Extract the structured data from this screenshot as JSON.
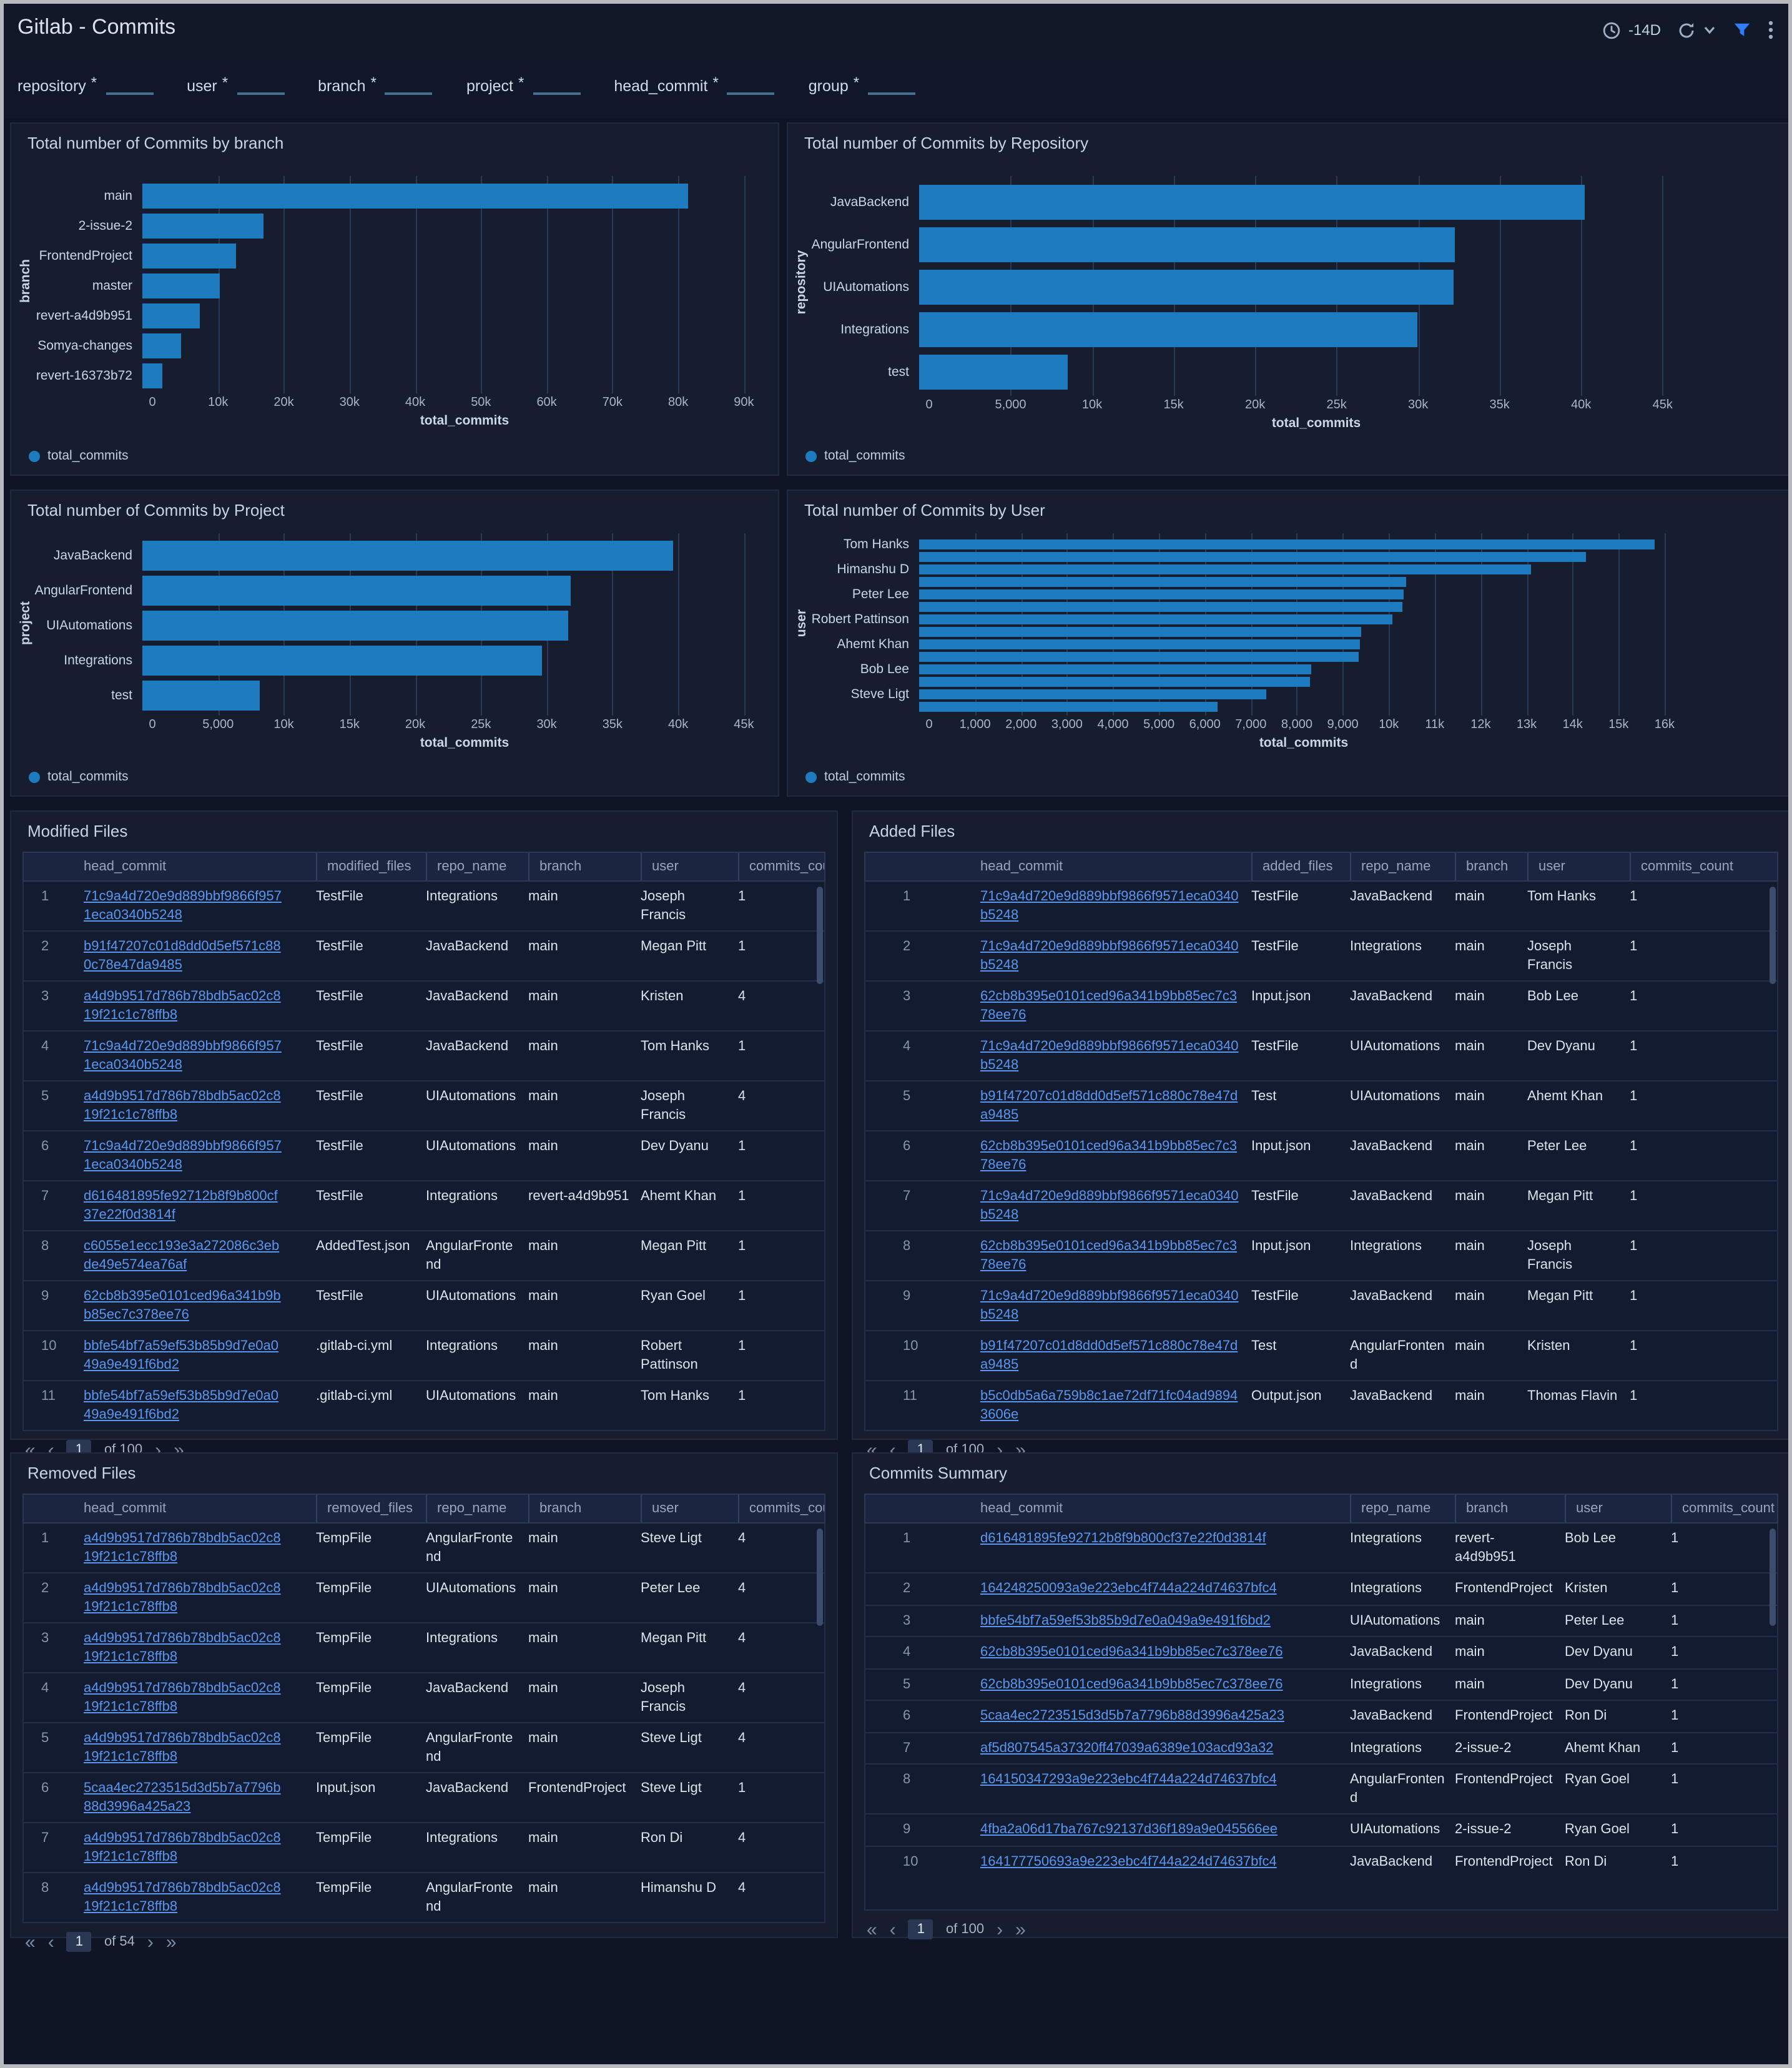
{
  "header": {
    "title": "Gitlab - Commits",
    "time_range": "-14D",
    "icons": [
      "clock-icon",
      "refresh-icon",
      "chevron-down-icon",
      "filter-icon",
      "kebab-menu-icon"
    ]
  },
  "filters": [
    {
      "label": "repository",
      "required": "*"
    },
    {
      "label": "user",
      "required": "*"
    },
    {
      "label": "branch",
      "required": "*"
    },
    {
      "label": "project",
      "required": "*"
    },
    {
      "label": "head_commit",
      "required": "*"
    },
    {
      "label": "group",
      "required": "*"
    }
  ],
  "colors": {
    "bar": "#1f7bc0",
    "link": "#5b96ee",
    "filter_icon_accent": "#2f7ef7"
  },
  "charts": [
    {
      "title": "Total number of Commits by branch",
      "type": "bar",
      "orientation": "horizontal",
      "ylabel": "branch",
      "xlabel": "total_commits",
      "legend": "total_commits",
      "xmax": 95000,
      "ticks": [
        {
          "v": 0,
          "label": "0"
        },
        {
          "v": 10000,
          "label": "10k"
        },
        {
          "v": 20000,
          "label": "20k"
        },
        {
          "v": 30000,
          "label": "30k"
        },
        {
          "v": 40000,
          "label": "40k"
        },
        {
          "v": 50000,
          "label": "50k"
        },
        {
          "v": 60000,
          "label": "60k"
        },
        {
          "v": 70000,
          "label": "70k"
        },
        {
          "v": 80000,
          "label": "80k"
        },
        {
          "v": 90000,
          "label": "90k"
        }
      ],
      "bars": [
        {
          "label": "main",
          "value": 83000
        },
        {
          "label": "2-issue-2",
          "value": 18500
        },
        {
          "label": "FrontendProject",
          "value": 14200
        },
        {
          "label": "master",
          "value": 11800
        },
        {
          "label": "revert-a4d9b951",
          "value": 8800
        },
        {
          "label": "Somya-changes",
          "value": 5900
        },
        {
          "label": "revert-16373b72",
          "value": 3000
        }
      ]
    },
    {
      "title": "Total number of Commits by Repository",
      "type": "bar",
      "orientation": "horizontal",
      "ylabel": "repository",
      "xlabel": "total_commits",
      "legend": "total_commits",
      "xmax": 47500,
      "ticks": [
        {
          "v": 0,
          "label": "0"
        },
        {
          "v": 5000,
          "label": "5,000"
        },
        {
          "v": 10000,
          "label": "10k"
        },
        {
          "v": 15000,
          "label": "15k"
        },
        {
          "v": 20000,
          "label": "20k"
        },
        {
          "v": 25000,
          "label": "25k"
        },
        {
          "v": 30000,
          "label": "30k"
        },
        {
          "v": 35000,
          "label": "35k"
        },
        {
          "v": 40000,
          "label": "40k"
        },
        {
          "v": 45000,
          "label": "45k"
        }
      ],
      "bars": [
        {
          "label": "JavaBackend",
          "value": 40800
        },
        {
          "label": "AngularFrontend",
          "value": 32900
        },
        {
          "label": "UIAutomations",
          "value": 32800
        },
        {
          "label": "Integrations",
          "value": 30600
        },
        {
          "label": "test",
          "value": 9100
        }
      ]
    },
    {
      "title": "Total number of Commits by Project",
      "type": "bar",
      "orientation": "horizontal",
      "ylabel": "project",
      "xlabel": "total_commits",
      "legend": "total_commits",
      "xmax": 47500,
      "ticks": [
        {
          "v": 0,
          "label": "0"
        },
        {
          "v": 5000,
          "label": "5,000"
        },
        {
          "v": 10000,
          "label": "10k"
        },
        {
          "v": 15000,
          "label": "15k"
        },
        {
          "v": 20000,
          "label": "20k"
        },
        {
          "v": 25000,
          "label": "25k"
        },
        {
          "v": 30000,
          "label": "30k"
        },
        {
          "v": 35000,
          "label": "35k"
        },
        {
          "v": 40000,
          "label": "40k"
        },
        {
          "v": 45000,
          "label": "45k"
        }
      ],
      "bars": [
        {
          "label": "JavaBackend",
          "value": 40400
        },
        {
          "label": "AngularFrontend",
          "value": 32600
        },
        {
          "label": "UIAutomations",
          "value": 32400
        },
        {
          "label": "Integrations",
          "value": 30400
        },
        {
          "label": "test",
          "value": 8900
        }
      ]
    },
    {
      "title": "Total number of Commits by User",
      "type": "bar",
      "orientation": "horizontal",
      "ylabel": "user",
      "xlabel": "total_commits",
      "legend": "total_commits",
      "xmax": 16300,
      "ticks": [
        {
          "v": 0,
          "label": "0"
        },
        {
          "v": 1000,
          "label": "1,000"
        },
        {
          "v": 2000,
          "label": "2,000"
        },
        {
          "v": 3000,
          "label": "3,000"
        },
        {
          "v": 4000,
          "label": "4,000"
        },
        {
          "v": 5000,
          "label": "5,000"
        },
        {
          "v": 6000,
          "label": "6,000"
        },
        {
          "v": 7000,
          "label": "7,000"
        },
        {
          "v": 8000,
          "label": "8,000"
        },
        {
          "v": 9000,
          "label": "9,000"
        },
        {
          "v": 10000,
          "label": "10k"
        },
        {
          "v": 11000,
          "label": "11k"
        },
        {
          "v": 12000,
          "label": "12k"
        },
        {
          "v": 13000,
          "label": "13k"
        },
        {
          "v": 14000,
          "label": "14k"
        },
        {
          "v": 15000,
          "label": "15k"
        },
        {
          "v": 16000,
          "label": "16k"
        }
      ],
      "bars": [
        {
          "label": "Tom Hanks",
          "value": 16000
        },
        {
          "label": "",
          "value": 14500
        },
        {
          "label": "Himanshu D",
          "value": 13300
        },
        {
          "label": "",
          "value": 10600
        },
        {
          "label": "Peter Lee",
          "value": 10550
        },
        {
          "label": "",
          "value": 10500
        },
        {
          "label": "Robert Pattinson",
          "value": 10300
        },
        {
          "label": "",
          "value": 9620
        },
        {
          "label": "Ahemt Khan",
          "value": 9600
        },
        {
          "label": "",
          "value": 9550
        },
        {
          "label": "Bob Lee",
          "value": 8520
        },
        {
          "label": "",
          "value": 8500
        },
        {
          "label": "Steve Ligt",
          "value": 7550
        },
        {
          "label": "",
          "value": 6500
        }
      ]
    }
  ],
  "tables": [
    {
      "title": "Modified Files",
      "columns": [
        "head_commit",
        "modified_files",
        "repo_name",
        "branch",
        "user",
        "commits_count"
      ],
      "rows": [
        [
          "71c9a4d720e9d889bbf9866f9571eca0340b5248",
          "TestFile",
          "Integrations",
          "main",
          "Joseph Francis",
          "1"
        ],
        [
          "b91f47207c01d8dd0d5ef571c880c78e47da9485",
          "TestFile",
          "JavaBackend",
          "main",
          "Megan Pitt",
          "1"
        ],
        [
          "a4d9b9517d786b78bdb5ac02c819f21c1c78ffb8",
          "TestFile",
          "JavaBackend",
          "main",
          "Kristen",
          "4"
        ],
        [
          "71c9a4d720e9d889bbf9866f9571eca0340b5248",
          "TestFile",
          "JavaBackend",
          "main",
          "Tom Hanks",
          "1"
        ],
        [
          "a4d9b9517d786b78bdb5ac02c819f21c1c78ffb8",
          "TestFile",
          "UIAutomations",
          "main",
          "Joseph Francis",
          "4"
        ],
        [
          "71c9a4d720e9d889bbf9866f9571eca0340b5248",
          "TestFile",
          "UIAutomations",
          "main",
          "Dev Dyanu",
          "1"
        ],
        [
          "d616481895fe92712b8f9b800cf37e22f0d3814f",
          "TestFile",
          "Integrations",
          "revert-a4d9b951",
          "Ahemt Khan",
          "1"
        ],
        [
          "c6055e1ecc193e3a272086c3ebde49e574ea76af",
          "AddedTest.json",
          "AngularFrontend",
          "main",
          "Megan Pitt",
          "1"
        ],
        [
          "62cb8b395e0101ced96a341b9bb85ec7c378ee76",
          "TestFile",
          "UIAutomations",
          "main",
          "Ryan Goel",
          "1"
        ],
        [
          "bbfe54bf7a59ef53b85b9d7e0a049a9e491f6bd2",
          ".gitlab-ci.yml",
          "Integrations",
          "main",
          "Robert Pattinson",
          "1"
        ],
        [
          "bbfe54bf7a59ef53b85b9d7e0a049a9e491f6bd2",
          ".gitlab-ci.yml",
          "UIAutomations",
          "main",
          "Tom Hanks",
          "1"
        ]
      ],
      "pagination": {
        "page": "1",
        "of_label": "of",
        "total": "100"
      }
    },
    {
      "title": "Added Files",
      "columns": [
        "head_commit",
        "added_files",
        "repo_name",
        "branch",
        "user",
        "commits_count"
      ],
      "rows": [
        [
          "71c9a4d720e9d889bbf9866f9571eca0340b5248",
          "TestFile",
          "JavaBackend",
          "main",
          "Tom Hanks",
          "1"
        ],
        [
          "71c9a4d720e9d889bbf9866f9571eca0340b5248",
          "TestFile",
          "Integrations",
          "main",
          "Joseph Francis",
          "1"
        ],
        [
          "62cb8b395e0101ced96a341b9bb85ec7c378ee76",
          "Input.json",
          "JavaBackend",
          "main",
          "Bob Lee",
          "1"
        ],
        [
          "71c9a4d720e9d889bbf9866f9571eca0340b5248",
          "TestFile",
          "UIAutomations",
          "main",
          "Dev Dyanu",
          "1"
        ],
        [
          "b91f47207c01d8dd0d5ef571c880c78e47da9485",
          "Test",
          "UIAutomations",
          "main",
          "Ahemt Khan",
          "1"
        ],
        [
          "62cb8b395e0101ced96a341b9bb85ec7c378ee76",
          "Input.json",
          "JavaBackend",
          "main",
          "Peter Lee",
          "1"
        ],
        [
          "71c9a4d720e9d889bbf9866f9571eca0340b5248",
          "TestFile",
          "JavaBackend",
          "main",
          "Megan Pitt",
          "1"
        ],
        [
          "62cb8b395e0101ced96a341b9bb85ec7c378ee76",
          "Input.json",
          "Integrations",
          "main",
          "Joseph Francis",
          "1"
        ],
        [
          "71c9a4d720e9d889bbf9866f9571eca0340b5248",
          "TestFile",
          "JavaBackend",
          "main",
          "Megan Pitt",
          "1"
        ],
        [
          "b91f47207c01d8dd0d5ef571c880c78e47da9485",
          "Test",
          "AngularFrontend",
          "main",
          "Kristen",
          "1"
        ],
        [
          "b5c0db5a6a759b8c1ae72df71fc04ad98943606e",
          "Output.json",
          "JavaBackend",
          "main",
          "Thomas Flavin",
          "1"
        ]
      ],
      "pagination": {
        "page": "1",
        "of_label": "of",
        "total": "100"
      }
    },
    {
      "title": "Removed Files",
      "columns": [
        "head_commit",
        "removed_files",
        "repo_name",
        "branch",
        "user",
        "commits_count"
      ],
      "rows": [
        [
          "a4d9b9517d786b78bdb5ac02c819f21c1c78ffb8",
          "TempFile",
          "AngularFrontend",
          "main",
          "Steve Ligt",
          "4"
        ],
        [
          "a4d9b9517d786b78bdb5ac02c819f21c1c78ffb8",
          "TempFile",
          "UIAutomations",
          "main",
          "Peter Lee",
          "4"
        ],
        [
          "a4d9b9517d786b78bdb5ac02c819f21c1c78ffb8",
          "TempFile",
          "Integrations",
          "main",
          "Megan Pitt",
          "4"
        ],
        [
          "a4d9b9517d786b78bdb5ac02c819f21c1c78ffb8",
          "TempFile",
          "JavaBackend",
          "main",
          "Joseph Francis",
          "4"
        ],
        [
          "a4d9b9517d786b78bdb5ac02c819f21c1c78ffb8",
          "TempFile",
          "AngularFrontend",
          "main",
          "Steve Ligt",
          "4"
        ],
        [
          "5caa4ec2723515d3d5b7a7796b88d3996a425a23",
          "Input.json",
          "JavaBackend",
          "FrontendProject",
          "Steve Ligt",
          "1"
        ],
        [
          "a4d9b9517d786b78bdb5ac02c819f21c1c78ffb8",
          "TempFile",
          "Integrations",
          "main",
          "Ron Di",
          "4"
        ],
        [
          "a4d9b9517d786b78bdb5ac02c819f21c1c78ffb8",
          "TempFile",
          "AngularFrontend",
          "main",
          "Himanshu D",
          "4"
        ]
      ],
      "pagination": {
        "page": "1",
        "of_label": "of",
        "total": "54"
      }
    },
    {
      "title": "Commits Summary",
      "columns": [
        "head_commit",
        "repo_name",
        "branch",
        "user",
        "commits_count"
      ],
      "rows": [
        [
          "d616481895fe92712b8f9b800cf37e22f0d3814f",
          "Integrations",
          "revert-a4d9b951",
          "Bob Lee",
          "1"
        ],
        [
          "164248250093a9e223ebc4f744a224d74637bfc4",
          "Integrations",
          "FrontendProject",
          "Kristen",
          "1"
        ],
        [
          "bbfe54bf7a59ef53b85b9d7e0a049a9e491f6bd2",
          "UIAutomations",
          "main",
          "Peter Lee",
          "1"
        ],
        [
          "62cb8b395e0101ced96a341b9bb85ec7c378ee76",
          "JavaBackend",
          "main",
          "Dev Dyanu",
          "1"
        ],
        [
          "62cb8b395e0101ced96a341b9bb85ec7c378ee76",
          "Integrations",
          "main",
          "Dev Dyanu",
          "1"
        ],
        [
          "5caa4ec2723515d3d5b7a7796b88d3996a425a23",
          "JavaBackend",
          "FrontendProject",
          "Ron Di",
          "1"
        ],
        [
          "af5d807545a37320ff47039a6389e103acd93a32",
          "Integrations",
          "2-issue-2",
          "Ahemt Khan",
          "1"
        ],
        [
          "164150347293a9e223ebc4f744a224d74637bfc4",
          "AngularFrontend",
          "FrontendProject",
          "Ryan Goel",
          "1"
        ],
        [
          "4fba2a06d17ba767c92137d36f189a9e045566ee",
          "UIAutomations",
          "2-issue-2",
          "Ryan Goel",
          "1"
        ],
        [
          "164177750693a9e223ebc4f744a224d74637bfc4",
          "JavaBackend",
          "FrontendProject",
          "Ron Di",
          "1"
        ]
      ],
      "pagination": {
        "page": "1",
        "of_label": "of",
        "total": "100"
      }
    }
  ]
}
